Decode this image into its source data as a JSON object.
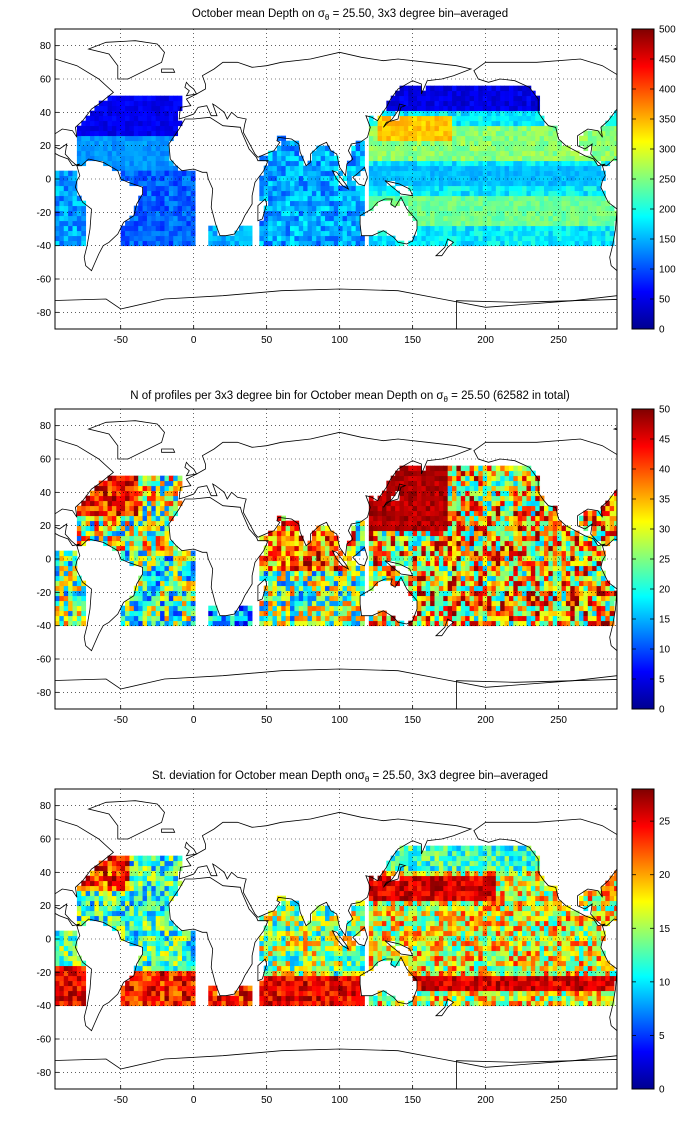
{
  "panels": [
    {
      "title_pre": "October mean Depth on σ",
      "title_sub": "θ",
      "title_post": " = 25.50, 3x3 degree bin–averaged",
      "colorbar": {
        "min": 0,
        "max": 500,
        "ticks": [
          0,
          50,
          100,
          150,
          200,
          250,
          300,
          350,
          400,
          450,
          500
        ]
      }
    },
    {
      "title_pre": "N of profiles per 3x3 degree bin for October mean Depth on σ",
      "title_sub": "θ",
      "title_post": " = 25.50 (62582 in total)",
      "colorbar": {
        "min": 0,
        "max": 50,
        "ticks": [
          0,
          5,
          10,
          15,
          20,
          25,
          30,
          35,
          40,
          45,
          50
        ]
      }
    },
    {
      "title_pre": "St. deviation for October mean Depth onσ",
      "title_sub": "θ",
      "title_post": " = 25.50, 3x3 degree bin–averaged",
      "colorbar": {
        "min": 0,
        "max": 28,
        "ticks": [
          0,
          5,
          10,
          15,
          20,
          25
        ]
      }
    }
  ],
  "chart_data": [
    {
      "type": "heatmap",
      "variable": "October mean Depth on sigma_theta = 25.50",
      "xlim": [
        -95,
        290
      ],
      "ylim": [
        -90,
        90
      ],
      "xticks": [
        -50,
        0,
        50,
        100,
        150,
        200,
        250
      ],
      "yticks": [
        -80,
        -60,
        -40,
        -20,
        0,
        20,
        40,
        60,
        80
      ],
      "colormap": "jet",
      "clim": [
        0,
        500
      ],
      "grid": "dotted",
      "regions": [
        {
          "lon": [
            -80,
            -10
          ],
          "lat": [
            10,
            45
          ],
          "value": 80
        },
        {
          "lon": [
            -45,
            -15
          ],
          "lat": [
            -35,
            10
          ],
          "value": 100
        },
        {
          "lon": [
            -95,
            -75
          ],
          "lat": [
            -40,
            5
          ],
          "value": 140
        },
        {
          "lon": [
            45,
            110
          ],
          "lat": [
            -35,
            -5
          ],
          "value": 160
        },
        {
          "lon": [
            55,
            95
          ],
          "lat": [
            -5,
            22
          ],
          "value": 90
        },
        {
          "lon": [
            130,
            165
          ],
          "lat": [
            25,
            35
          ],
          "value": 340
        },
        {
          "lon": [
            120,
            230
          ],
          "lat": [
            10,
            30
          ],
          "value": 250
        },
        {
          "lon": [
            140,
            270
          ],
          "lat": [
            -5,
            8
          ],
          "value": 140
        },
        {
          "lon": [
            150,
            260
          ],
          "lat": [
            -30,
            -12
          ],
          "value": 230
        },
        {
          "lon": [
            150,
            285
          ],
          "lat": [
            40,
            58
          ],
          "value": 40
        }
      ]
    },
    {
      "type": "heatmap",
      "variable": "N of profiles per 3x3 degree bin",
      "total_profiles": 62582,
      "xlim": [
        -95,
        290
      ],
      "ylim": [
        -90,
        90
      ],
      "xticks": [
        -50,
        0,
        50,
        100,
        150,
        200,
        250
      ],
      "yticks": [
        -80,
        -60,
        -40,
        -20,
        0,
        20,
        40,
        60,
        80
      ],
      "colormap": "jet",
      "clim": [
        0,
        50
      ],
      "grid": "dotted",
      "regions": [
        {
          "lon": [
            -80,
            -40
          ],
          "lat": [
            25,
            45
          ],
          "value": 45
        },
        {
          "lon": [
            130,
            170
          ],
          "lat": [
            20,
            45
          ],
          "value": 50
        },
        {
          "lon": [
            50,
            110
          ],
          "lat": [
            -10,
            20
          ],
          "value": 35
        },
        {
          "lon": [
            150,
            280
          ],
          "lat": [
            -30,
            50
          ],
          "value": 30
        }
      ]
    },
    {
      "type": "heatmap",
      "variable": "St. deviation for October mean Depth",
      "xlim": [
        -95,
        290
      ],
      "ylim": [
        -90,
        90
      ],
      "xticks": [
        -50,
        0,
        50,
        100,
        150,
        200,
        250
      ],
      "yticks": [
        -80,
        -60,
        -40,
        -20,
        0,
        20,
        40,
        60,
        80
      ],
      "colormap": "jet",
      "clim": [
        0,
        28
      ],
      "grid": "dotted",
      "regions": [
        {
          "lon": [
            130,
            200
          ],
          "lat": [
            25,
            35
          ],
          "value": 27
        },
        {
          "lon": [
            150,
            280
          ],
          "lat": [
            -32,
            -25
          ],
          "value": 27
        },
        {
          "lon": [
            -95,
            -70
          ],
          "lat": [
            -35,
            -20
          ],
          "value": 25
        },
        {
          "lon": [
            30,
            120
          ],
          "lat": [
            -35,
            -25
          ],
          "value": 25
        },
        {
          "lon": [
            -80,
            -45
          ],
          "lat": [
            28,
            40
          ],
          "value": 22
        },
        {
          "lon": [
            150,
            280
          ],
          "lat": [
            40,
            55
          ],
          "value": 12
        }
      ]
    }
  ]
}
